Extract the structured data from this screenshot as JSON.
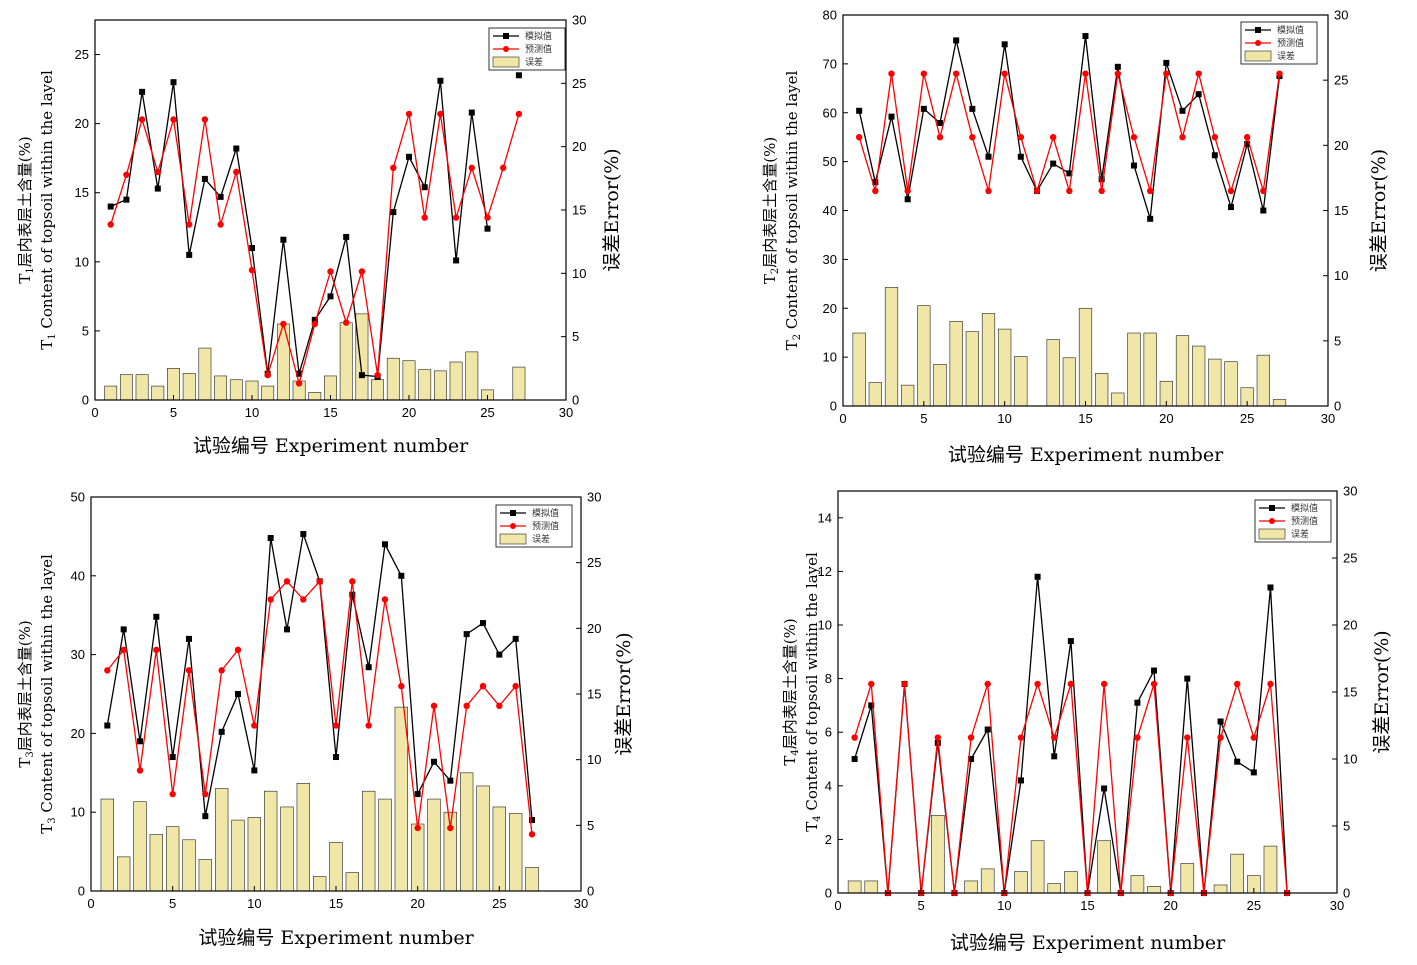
{
  "colors": {
    "sim": "#000000",
    "pred": "#ff0000",
    "err_fill": "#f0e6a8",
    "err_stroke": "#222222"
  },
  "chart_data": [
    {
      "type": "bar+line",
      "ylabel_prefix": "T",
      "ylabel_sub": "1",
      "ylabel_cn": "层内表层土含量(%)",
      "ylabel_sub2": "1",
      "ylabel_en": " Content of topsoil within the layel",
      "y2label": "误差Error(%)",
      "xlabel": "试验编号 Experiment number",
      "xlim": [
        0,
        30
      ],
      "ylim": [
        0,
        27.5
      ],
      "y2lim": [
        0,
        30
      ],
      "xticks": [
        0,
        5,
        10,
        15,
        20,
        25,
        30
      ],
      "yticks": [
        0,
        5,
        10,
        15,
        20,
        25
      ],
      "y2ticks": [
        0,
        5,
        10,
        15,
        20,
        25,
        30
      ],
      "legend": [
        "模拟值",
        "预测值",
        "误差"
      ],
      "x": [
        1,
        2,
        3,
        4,
        5,
        6,
        7,
        8,
        9,
        10,
        11,
        12,
        13,
        14,
        15,
        16,
        17,
        18,
        19,
        20,
        21,
        22,
        23,
        24,
        25,
        26,
        27
      ],
      "series": [
        {
          "name": "模拟值",
          "values": [
            14.0,
            14.5,
            22.3,
            15.3,
            23.0,
            10.5,
            16.0,
            14.7,
            18.2,
            11.0,
            1.9,
            11.6,
            1.9,
            5.8,
            7.5,
            11.8,
            1.8,
            1.7,
            13.6,
            17.6,
            15.4,
            23.1,
            10.1,
            20.8,
            12.4,
            null,
            23.5
          ]
        },
        {
          "name": "预测值",
          "values": [
            12.7,
            16.3,
            20.3,
            16.5,
            20.3,
            12.7,
            20.3,
            12.7,
            16.5,
            9.4,
            1.8,
            5.5,
            1.2,
            5.5,
            9.3,
            5.6,
            9.3,
            1.8,
            16.8,
            20.7,
            13.2,
            20.7,
            13.2,
            16.8,
            13.2,
            16.8,
            20.7
          ]
        },
        {
          "name": "误差",
          "values": [
            1.1,
            2.0,
            2.0,
            1.1,
            2.5,
            2.1,
            4.1,
            1.9,
            1.6,
            1.5,
            1.1,
            6.0,
            1.5,
            0.6,
            1.9,
            6.1,
            6.8,
            1.6,
            3.3,
            3.1,
            2.4,
            2.3,
            3.0,
            3.8,
            0.8,
            null,
            2.6
          ]
        }
      ]
    },
    {
      "type": "bar+line",
      "ylabel_prefix": "T",
      "ylabel_sub": "2",
      "ylabel_cn": "层内表层土含量(%)",
      "ylabel_sub2": "2",
      "ylabel_en": " Content of topsoil within the layel",
      "y2label": "误差Error(%)",
      "xlabel": "试验编号 Experiment number",
      "xlim": [
        0,
        30
      ],
      "ylim": [
        0,
        80
      ],
      "y2lim": [
        0,
        30
      ],
      "xticks": [
        0,
        5,
        10,
        15,
        20,
        25,
        30
      ],
      "yticks": [
        0,
        10,
        20,
        30,
        40,
        50,
        60,
        70,
        80
      ],
      "y2ticks": [
        0,
        5,
        10,
        15,
        20,
        25,
        30
      ],
      "legend": [
        "模拟值",
        "预测值",
        "误差"
      ],
      "x": [
        1,
        2,
        3,
        4,
        5,
        6,
        7,
        8,
        9,
        10,
        11,
        12,
        13,
        14,
        15,
        16,
        17,
        18,
        19,
        20,
        21,
        22,
        23,
        24,
        25,
        26,
        27
      ],
      "series": [
        {
          "name": "模拟值",
          "values": [
            60.4,
            45.8,
            59.2,
            42.3,
            60.8,
            57.9,
            74.8,
            60.8,
            51.0,
            74.0,
            51.0,
            44.0,
            49.6,
            47.6,
            75.7,
            46.4,
            69.4,
            49.2,
            38.3,
            70.2,
            60.4,
            63.8,
            51.3,
            40.7,
            53.6,
            40.0,
            67.5
          ]
        },
        {
          "name": "预测值",
          "values": [
            55.0,
            44.0,
            68.0,
            44.0,
            68.0,
            55.0,
            68.0,
            55.0,
            44.0,
            68.0,
            55.0,
            44.0,
            55.0,
            44.0,
            68.0,
            44.0,
            68.0,
            55.0,
            44.0,
            68.0,
            55.0,
            68.0,
            55.0,
            44.0,
            55.0,
            44.0,
            68.0
          ]
        },
        {
          "name": "误差",
          "values": [
            5.6,
            1.8,
            9.1,
            1.6,
            7.7,
            3.2,
            6.5,
            5.7,
            7.1,
            5.9,
            3.8,
            null,
            5.1,
            3.7,
            7.5,
            2.5,
            1.0,
            5.6,
            5.6,
            1.9,
            5.4,
            4.6,
            3.6,
            3.4,
            1.4,
            3.9,
            0.5
          ]
        }
      ]
    },
    {
      "type": "bar+line",
      "ylabel_prefix": "T",
      "ylabel_sub": "3",
      "ylabel_cn": "层内表层土含量(%)",
      "ylabel_sub2": "3",
      "ylabel_en": " Content of topsoil within the layel",
      "y2label": "误差Error(%)",
      "xlabel": "试验编号 Experiment number",
      "xlim": [
        0,
        30
      ],
      "ylim": [
        0,
        50
      ],
      "y2lim": [
        0,
        30
      ],
      "xticks": [
        0,
        5,
        10,
        15,
        20,
        25,
        30
      ],
      "yticks": [
        0,
        10,
        20,
        30,
        40,
        50
      ],
      "y2ticks": [
        0,
        5,
        10,
        15,
        20,
        25,
        30
      ],
      "legend": [
        "模拟值",
        "预测值",
        "误差"
      ],
      "x": [
        1,
        2,
        3,
        4,
        5,
        6,
        7,
        8,
        9,
        10,
        11,
        12,
        13,
        14,
        15,
        16,
        17,
        18,
        19,
        20,
        21,
        22,
        23,
        24,
        25,
        26,
        27
      ],
      "series": [
        {
          "name": "模拟值",
          "values": [
            21.0,
            33.2,
            19.0,
            34.8,
            17.0,
            32.0,
            9.5,
            20.2,
            25.0,
            15.3,
            44.8,
            33.2,
            45.3,
            39.3,
            17.0,
            37.6,
            28.4,
            44.0,
            40.0,
            12.3,
            16.4,
            14.0,
            32.6,
            34.0,
            30.0,
            32.0,
            9.0
          ]
        },
        {
          "name": "预测值",
          "values": [
            28.0,
            30.6,
            15.3,
            30.6,
            12.3,
            28.0,
            12.3,
            28.0,
            30.6,
            21.0,
            37.0,
            39.3,
            37.0,
            39.3,
            21.0,
            39.3,
            21.0,
            37.0,
            26.0,
            8.0,
            23.5,
            8.0,
            23.5,
            26.0,
            23.5,
            26.0,
            7.2
          ]
        },
        {
          "name": "误差",
          "values": [
            7.0,
            2.6,
            6.8,
            4.3,
            4.9,
            3.9,
            2.4,
            7.8,
            5.4,
            5.6,
            7.6,
            6.4,
            8.2,
            1.1,
            3.7,
            1.4,
            7.6,
            7.0,
            14.0,
            5.1,
            7.0,
            6.0,
            9.0,
            8.0,
            6.4,
            5.9,
            1.8
          ]
        }
      ]
    },
    {
      "type": "bar+line",
      "ylabel_prefix": "T",
      "ylabel_sub": "4",
      "ylabel_cn": "层内表层土含量(%)",
      "ylabel_sub2": "4",
      "ylabel_en": " Content of topsoil within the layel",
      "y2label": "误差Error(%)",
      "xlabel": "试验编号 Experiment number",
      "xlim": [
        0,
        30
      ],
      "ylim": [
        0,
        15
      ],
      "y2lim": [
        0,
        30
      ],
      "xticks": [
        0,
        5,
        10,
        15,
        20,
        25,
        30
      ],
      "yticks": [
        0,
        2,
        4,
        6,
        8,
        10,
        12,
        14
      ],
      "y2ticks": [
        0,
        5,
        10,
        15,
        20,
        25,
        30
      ],
      "legend": [
        "模拟值",
        "预测值",
        "误差"
      ],
      "x": [
        1,
        2,
        3,
        4,
        5,
        6,
        7,
        8,
        9,
        10,
        11,
        12,
        13,
        14,
        15,
        16,
        17,
        18,
        19,
        20,
        21,
        22,
        23,
        24,
        25,
        26,
        27
      ],
      "series": [
        {
          "name": "模拟值",
          "values": [
            5.0,
            7.0,
            0.0,
            7.8,
            0.0,
            5.6,
            0.0,
            5.0,
            6.1,
            0.0,
            4.2,
            11.8,
            5.1,
            9.4,
            0.0,
            3.9,
            0.0,
            7.1,
            8.3,
            0.0,
            8.0,
            0.0,
            6.4,
            4.9,
            4.5,
            11.4,
            0.0
          ]
        },
        {
          "name": "预测值",
          "values": [
            5.8,
            7.8,
            0.0,
            7.8,
            0.0,
            5.8,
            0.0,
            5.8,
            7.8,
            0.0,
            5.8,
            7.8,
            5.8,
            7.8,
            0.0,
            7.8,
            0.0,
            5.8,
            7.8,
            0.0,
            5.8,
            0.0,
            5.8,
            7.8,
            5.8,
            7.8,
            0.0
          ]
        },
        {
          "name": "误差",
          "values": [
            0.9,
            0.9,
            null,
            null,
            null,
            5.8,
            null,
            0.9,
            1.8,
            null,
            1.6,
            3.9,
            0.7,
            1.6,
            null,
            3.9,
            null,
            1.3,
            0.5,
            null,
            2.2,
            null,
            0.6,
            2.9,
            1.3,
            3.5,
            null
          ]
        }
      ]
    }
  ]
}
